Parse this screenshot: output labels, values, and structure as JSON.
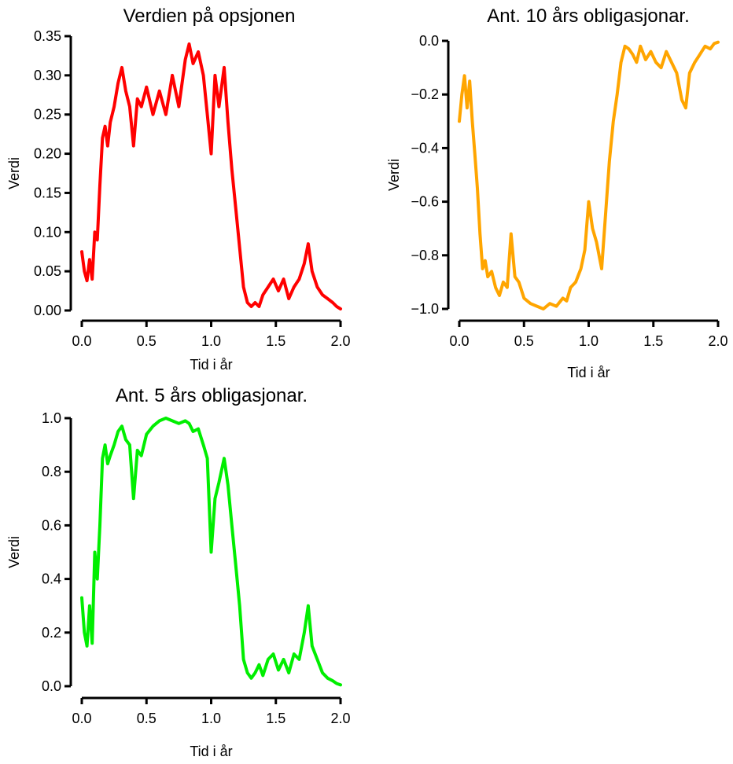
{
  "chart_data": [
    {
      "type": "line",
      "title": "Verdien på opsjonen",
      "xlabel": "Tid i år",
      "ylabel": "Verdi",
      "color": "#ff0000",
      "xlim": [
        0.0,
        2.0
      ],
      "ylim": [
        0.0,
        0.35
      ],
      "xticks": [
        0.0,
        0.5,
        1.0,
        1.5,
        2.0
      ],
      "xtick_labels": [
        "0.0",
        "0.5",
        "1.0",
        "1.5",
        "2.0"
      ],
      "yticks": [
        0.0,
        0.05,
        0.1,
        0.15,
        0.2,
        0.25,
        0.3,
        0.35
      ],
      "ytick_labels": [
        "0.00",
        "0.05",
        "0.10",
        "0.15",
        "0.20",
        "0.25",
        "0.30",
        "0.35"
      ],
      "grid": false,
      "series": [
        {
          "x": [
            0.0,
            0.02,
            0.04,
            0.06,
            0.08,
            0.1,
            0.12,
            0.14,
            0.16,
            0.18,
            0.2,
            0.22,
            0.25,
            0.28,
            0.31,
            0.34,
            0.37,
            0.4,
            0.43,
            0.46,
            0.5,
            0.55,
            0.6,
            0.65,
            0.7,
            0.75,
            0.8,
            0.83,
            0.86,
            0.9,
            0.94,
            0.97,
            1.0,
            1.03,
            1.06,
            1.1,
            1.13,
            1.16,
            1.19,
            1.22,
            1.25,
            1.28,
            1.31,
            1.34,
            1.37,
            1.4,
            1.44,
            1.48,
            1.52,
            1.56,
            1.6,
            1.64,
            1.68,
            1.72,
            1.75,
            1.78,
            1.82,
            1.86,
            1.9,
            1.94,
            1.97,
            2.0
          ],
          "y": [
            0.075,
            0.05,
            0.038,
            0.065,
            0.04,
            0.1,
            0.09,
            0.16,
            0.22,
            0.235,
            0.21,
            0.24,
            0.26,
            0.29,
            0.31,
            0.28,
            0.26,
            0.21,
            0.27,
            0.26,
            0.285,
            0.25,
            0.28,
            0.25,
            0.3,
            0.26,
            0.32,
            0.34,
            0.315,
            0.33,
            0.3,
            0.25,
            0.2,
            0.3,
            0.26,
            0.31,
            0.24,
            0.18,
            0.13,
            0.08,
            0.03,
            0.01,
            0.005,
            0.01,
            0.005,
            0.02,
            0.03,
            0.04,
            0.025,
            0.04,
            0.015,
            0.03,
            0.04,
            0.06,
            0.085,
            0.05,
            0.03,
            0.02,
            0.015,
            0.01,
            0.005,
            0.002
          ]
        }
      ]
    },
    {
      "type": "line",
      "title": "Ant. 10 års obligasjonar.",
      "xlabel": "Tid i år",
      "ylabel": "Verdi",
      "color": "#ffa500",
      "xlim": [
        0.0,
        2.0
      ],
      "ylim": [
        -1.0,
        0.0
      ],
      "xticks": [
        0.0,
        0.5,
        1.0,
        1.5,
        2.0
      ],
      "xtick_labels": [
        "0.0",
        "0.5",
        "1.0",
        "1.5",
        "2.0"
      ],
      "yticks": [
        -1.0,
        -0.8,
        -0.6,
        -0.4,
        -0.2,
        0.0
      ],
      "ytick_labels": [
        "−1.0",
        "−0.8",
        "−0.6",
        "−0.4",
        "−0.2",
        "0.0"
      ],
      "grid": false,
      "series": [
        {
          "x": [
            0.0,
            0.02,
            0.04,
            0.06,
            0.08,
            0.1,
            0.12,
            0.14,
            0.16,
            0.18,
            0.2,
            0.22,
            0.25,
            0.28,
            0.31,
            0.34,
            0.37,
            0.4,
            0.43,
            0.46,
            0.5,
            0.55,
            0.6,
            0.65,
            0.7,
            0.75,
            0.8,
            0.83,
            0.86,
            0.9,
            0.94,
            0.97,
            1.0,
            1.03,
            1.06,
            1.1,
            1.13,
            1.16,
            1.19,
            1.22,
            1.25,
            1.28,
            1.31,
            1.34,
            1.37,
            1.4,
            1.44,
            1.48,
            1.52,
            1.56,
            1.6,
            1.64,
            1.68,
            1.72,
            1.75,
            1.78,
            1.82,
            1.86,
            1.9,
            1.94,
            1.97,
            2.0
          ],
          "y": [
            -0.3,
            -0.2,
            -0.13,
            -0.25,
            -0.15,
            -0.3,
            -0.42,
            -0.55,
            -0.72,
            -0.85,
            -0.82,
            -0.88,
            -0.86,
            -0.92,
            -0.95,
            -0.9,
            -0.92,
            -0.72,
            -0.88,
            -0.9,
            -0.96,
            -0.98,
            -0.99,
            -1.0,
            -0.98,
            -0.99,
            -0.96,
            -0.97,
            -0.92,
            -0.9,
            -0.85,
            -0.78,
            -0.6,
            -0.7,
            -0.75,
            -0.85,
            -0.65,
            -0.45,
            -0.3,
            -0.2,
            -0.08,
            -0.02,
            -0.03,
            -0.05,
            -0.08,
            -0.02,
            -0.07,
            -0.04,
            -0.08,
            -0.1,
            -0.04,
            -0.08,
            -0.12,
            -0.22,
            -0.25,
            -0.12,
            -0.08,
            -0.05,
            -0.02,
            -0.03,
            -0.01,
            -0.005
          ]
        }
      ]
    },
    {
      "type": "line",
      "title": "Ant. 5 års obligasjonar.",
      "xlabel": "Tid i år",
      "ylabel": "Verdi",
      "color": "#00ee00",
      "xlim": [
        0.0,
        2.0
      ],
      "ylim": [
        0.0,
        1.0
      ],
      "xticks": [
        0.0,
        0.5,
        1.0,
        1.5,
        2.0
      ],
      "xtick_labels": [
        "0.0",
        "0.5",
        "1.0",
        "1.5",
        "2.0"
      ],
      "yticks": [
        0.0,
        0.2,
        0.4,
        0.6,
        0.8,
        1.0
      ],
      "ytick_labels": [
        "0.0",
        "0.2",
        "0.4",
        "0.6",
        "0.8",
        "1.0"
      ],
      "grid": false,
      "series": [
        {
          "x": [
            0.0,
            0.02,
            0.04,
            0.06,
            0.08,
            0.1,
            0.12,
            0.14,
            0.16,
            0.18,
            0.2,
            0.22,
            0.25,
            0.28,
            0.31,
            0.34,
            0.37,
            0.4,
            0.43,
            0.46,
            0.5,
            0.55,
            0.6,
            0.65,
            0.7,
            0.75,
            0.8,
            0.83,
            0.86,
            0.9,
            0.94,
            0.97,
            1.0,
            1.03,
            1.06,
            1.1,
            1.13,
            1.16,
            1.19,
            1.22,
            1.25,
            1.28,
            1.31,
            1.34,
            1.37,
            1.4,
            1.44,
            1.48,
            1.52,
            1.56,
            1.6,
            1.64,
            1.68,
            1.72,
            1.75,
            1.78,
            1.82,
            1.86,
            1.9,
            1.94,
            1.97,
            2.0
          ],
          "y": [
            0.33,
            0.2,
            0.15,
            0.3,
            0.16,
            0.5,
            0.4,
            0.6,
            0.85,
            0.9,
            0.83,
            0.86,
            0.9,
            0.95,
            0.97,
            0.92,
            0.9,
            0.7,
            0.88,
            0.86,
            0.94,
            0.97,
            0.99,
            1.0,
            0.99,
            0.98,
            0.99,
            0.98,
            0.95,
            0.96,
            0.9,
            0.85,
            0.5,
            0.7,
            0.76,
            0.85,
            0.75,
            0.6,
            0.45,
            0.3,
            0.1,
            0.05,
            0.03,
            0.05,
            0.08,
            0.04,
            0.1,
            0.12,
            0.06,
            0.1,
            0.05,
            0.12,
            0.1,
            0.2,
            0.3,
            0.15,
            0.1,
            0.05,
            0.03,
            0.02,
            0.01,
            0.005
          ]
        }
      ]
    }
  ]
}
